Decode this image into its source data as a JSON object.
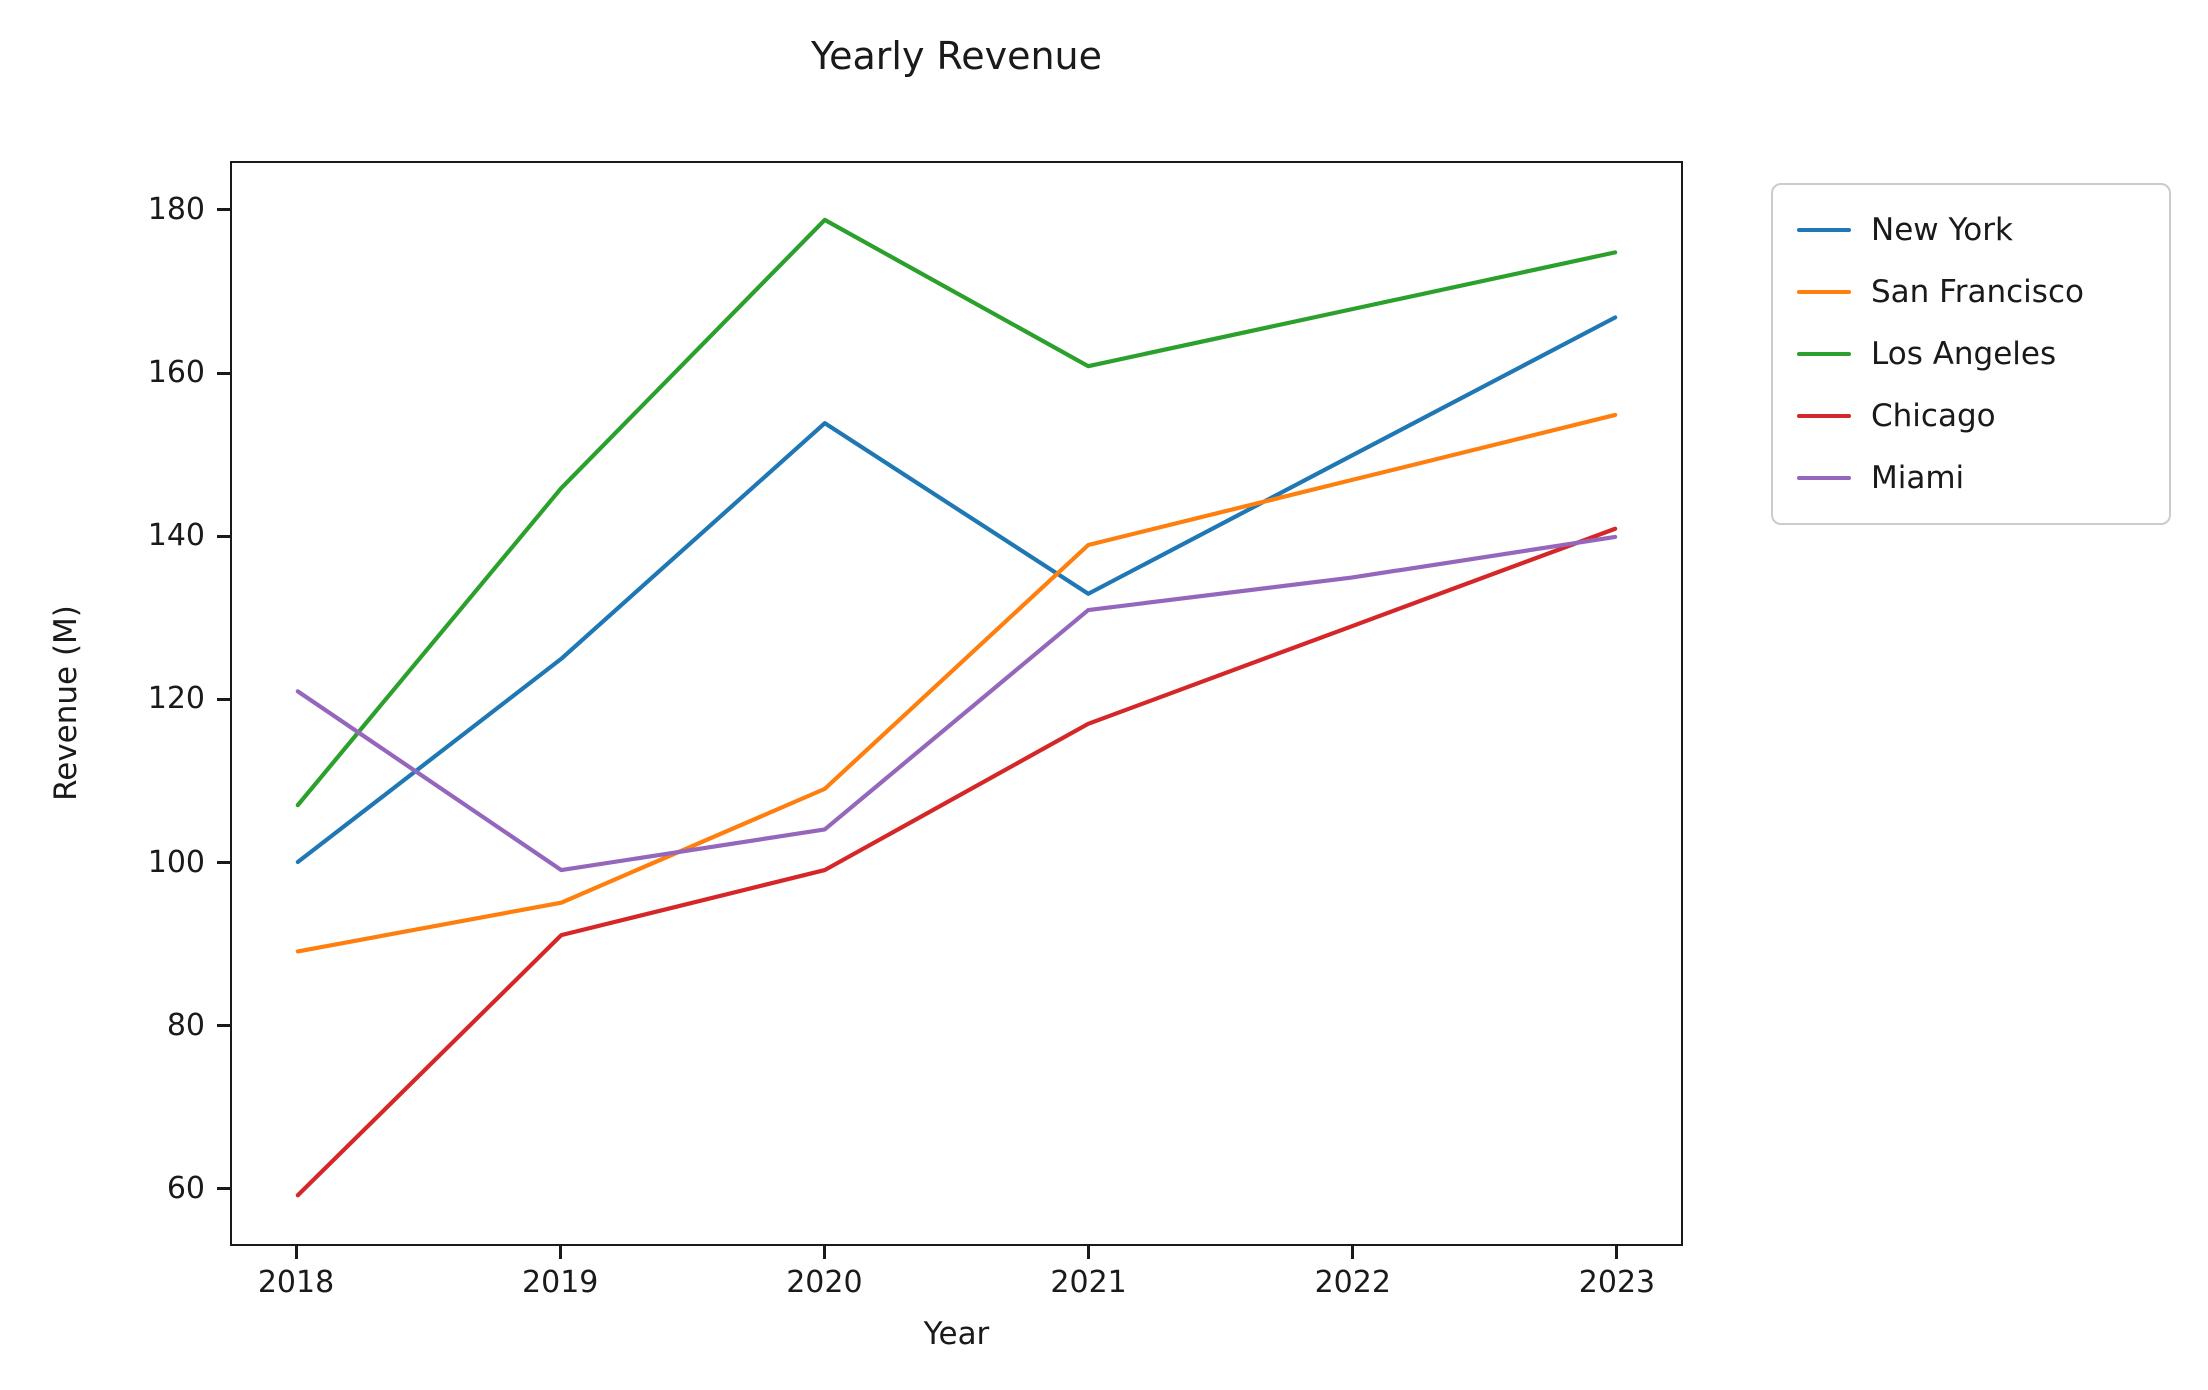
{
  "figure": {
    "background": "#ffffff",
    "text_color": "#1a1a1a",
    "legend_border_color": "#cccccc"
  },
  "chart_data": {
    "type": "line",
    "title": "Yearly Revenue",
    "xlabel": "Year",
    "ylabel": "Revenue (M)",
    "x": [
      2018,
      2019,
      2020,
      2021,
      2022,
      2023
    ],
    "x_tick_labels": [
      "2018",
      "2019",
      "2020",
      "2021",
      "2022",
      "2023"
    ],
    "y_ticks": [
      60,
      80,
      100,
      120,
      140,
      160,
      180
    ],
    "y_tick_labels": [
      "60",
      "80",
      "100",
      "120",
      "140",
      "160",
      "180"
    ],
    "xlim": [
      2017.75,
      2023.25
    ],
    "ylim": [
      53,
      186
    ],
    "grid": false,
    "legend_position": "outside-upper-right",
    "series": [
      {
        "name": "New York",
        "color": "#1f77b4",
        "values": [
          100,
          125,
          154,
          133,
          150,
          167
        ]
      },
      {
        "name": "San Francisco",
        "color": "#ff7f0e",
        "values": [
          89,
          95,
          109,
          139,
          147,
          155
        ]
      },
      {
        "name": "Los Angeles",
        "color": "#2ca02c",
        "values": [
          107,
          146,
          179,
          161,
          168,
          175
        ]
      },
      {
        "name": "Chicago",
        "color": "#d62728",
        "values": [
          59,
          91,
          99,
          117,
          129,
          141
        ]
      },
      {
        "name": "Miami",
        "color": "#9467bd",
        "values": [
          121,
          99,
          104,
          131,
          135,
          140
        ]
      }
    ]
  }
}
